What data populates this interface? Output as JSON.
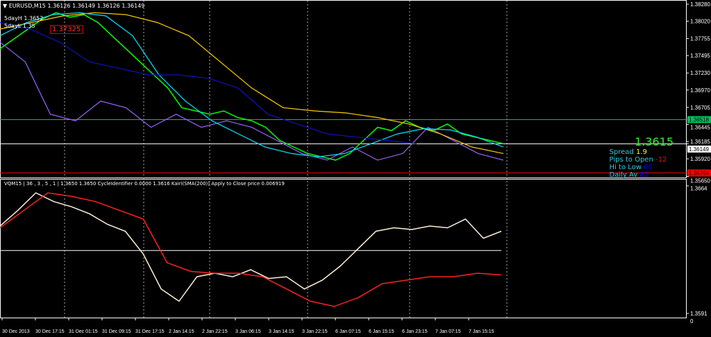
{
  "window": {
    "title": "EURUSD,M15",
    "ohlc": "1.36126 1.36149 1.36126 1.36149",
    "labels": [
      "5dayH 1.3652",
      "5dayL 1.35"
    ],
    "box_label": "1.37325"
  },
  "indicator_header": "VQM15 | 36 , 3 , 5 , 1 | 1.3650 1.3650 CycleIdentifier 0.0000 1.3616 Kairi(SMA(200)) Apply to Close price 0.006919",
  "info_panel": {
    "price": "1.3615",
    "rows": [
      {
        "label": "Spread",
        "value": "1.9",
        "color": "#ffff00"
      },
      {
        "label": "Pips to Open",
        "value": "-12",
        "color": "#ff0000"
      },
      {
        "label": "Hi to Low",
        "value": "60",
        "color": "#0000ff"
      },
      {
        "label": "Daily Av",
        "value": "82",
        "color": "#0000ff"
      }
    ]
  },
  "chart_data": [
    {
      "type": "line",
      "title": "EURUSD,M15",
      "ylim": [
        1.3568,
        1.3832
      ],
      "y_ticks": [
        "1.38280",
        "1.38020",
        "1.37755",
        "1.37495",
        "1.37230",
        "1.36970",
        "1.36705",
        "1.36445",
        "1.36185",
        "1.35920",
        "1.35650"
      ],
      "y_tick_values": [
        1.3828,
        1.3802,
        1.37755,
        1.37495,
        1.3723,
        1.3697,
        1.36705,
        1.36445,
        1.36185,
        1.3592,
        1.3565
      ],
      "price_tags": [
        {
          "label": "1.36518",
          "value": 1.36518,
          "color": "#00c060"
        },
        {
          "label": "1.36149",
          "value": 1.36149,
          "color": "#ffffff"
        },
        {
          "label": "1.35704",
          "value": 1.35704,
          "color": "#ff0000"
        }
      ],
      "series": [
        {
          "color": "#00ff00",
          "values": [
            1.376,
            1.3775,
            1.379,
            1.3805,
            1.3815,
            1.3808,
            1.3812,
            1.38,
            1.378,
            1.376,
            1.374,
            1.372,
            1.37,
            1.367,
            1.3665,
            1.366,
            1.3665,
            1.3655,
            1.365,
            1.364,
            1.362,
            1.361,
            1.36,
            1.3595,
            1.359,
            1.36,
            1.362,
            1.364,
            1.3635,
            1.365,
            1.364,
            1.3635,
            1.3645,
            1.363,
            1.3625,
            1.362,
            1.3615
          ]
        },
        {
          "color": "#9966ff",
          "values": [
            1.377,
            1.374,
            1.366,
            1.365,
            1.368,
            1.367,
            1.364,
            1.366,
            1.364,
            1.365,
            1.364,
            1.362,
            1.36,
            1.359,
            1.361,
            1.359,
            1.36,
            1.364,
            1.362,
            1.36,
            1.359
          ]
        },
        {
          "color": "#ffcc00",
          "values": [
            1.379,
            1.38,
            1.381,
            1.3815,
            1.3812,
            1.38,
            1.378,
            1.374,
            1.37,
            1.367,
            1.3665,
            1.3662,
            1.3655,
            1.3645,
            1.363,
            1.361,
            1.36
          ]
        },
        {
          "color": "#00e5ff",
          "values": [
            1.378,
            1.38,
            1.3812,
            1.3815,
            1.381,
            1.378,
            1.372,
            1.368,
            1.365,
            1.363,
            1.361,
            1.36,
            1.3595,
            1.36,
            1.3615,
            1.363,
            1.3638,
            1.3636,
            1.3625,
            1.361
          ]
        },
        {
          "color": "#1010c0",
          "values": [
            1.38,
            1.379,
            1.377,
            1.374,
            1.373,
            1.372,
            1.372,
            1.3715,
            1.37,
            1.366,
            1.3645,
            1.363,
            1.3625,
            1.362,
            1.3615
          ]
        }
      ]
    },
    {
      "type": "line",
      "title": "VQM15",
      "ylim": [
        1.3591,
        1.3664
      ],
      "y_ticks": [
        "1.3664",
        "1.3591",
        "0"
      ],
      "x_ticks": [
        "30 Dec 2013",
        "30 Dec 17:15",
        "31 Dec 01:15",
        "31 Dec 09:15",
        "31 Dec 17:15",
        "2 Jan 14:15",
        "2 Jan 22:15",
        "3 Jan 06:15",
        "3 Jan 14:15",
        "3 Jan 22:15",
        "6 Jan 07:15",
        "6 Jan 15:15",
        "6 Jan 23:15",
        "7 Jan 07:15",
        "7 Jan 15:15"
      ],
      "level": 1.3627,
      "series": [
        {
          "color": "#fff0d8",
          "values": [
            1.3641,
            1.365,
            1.366,
            1.3655,
            1.3652,
            1.3648,
            1.3642,
            1.3638,
            1.3625,
            1.3605,
            1.3598,
            1.3612,
            1.3614,
            1.3612,
            1.3616,
            1.3611,
            1.3612,
            1.3605,
            1.361,
            1.3618,
            1.3628,
            1.3638,
            1.364,
            1.3639,
            1.3641,
            1.364,
            1.3645,
            1.3634,
            1.3638
          ]
        },
        {
          "color": "#ff2020",
          "values": [
            1.364,
            1.365,
            1.366,
            1.3658,
            1.3655,
            1.365,
            1.3645,
            1.362,
            1.3615,
            1.3614,
            1.3614,
            1.3612,
            1.3605,
            1.3598,
            1.3595,
            1.36,
            1.3608,
            1.361,
            1.3612,
            1.3612,
            1.3614,
            1.3613
          ]
        }
      ]
    }
  ]
}
